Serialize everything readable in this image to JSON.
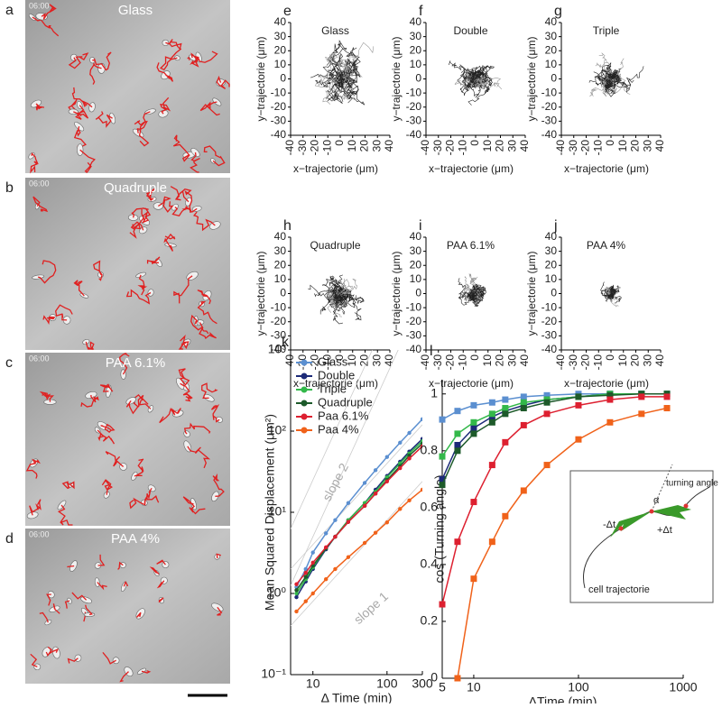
{
  "images": [
    {
      "letter": "a",
      "time": "06:00",
      "label": "Glass"
    },
    {
      "letter": "b",
      "time": "06:00",
      "label": "Quadruple"
    },
    {
      "letter": "c",
      "time": "06:00",
      "label": "PAA 6.1%"
    },
    {
      "letter": "d",
      "time": "06:00",
      "label": "PAA 4%"
    }
  ],
  "chart_data": [
    {
      "type": "trajectory",
      "letter": "e",
      "title": "Glass",
      "xlabel": "x−trajectorie (μm)",
      "ylabel": "y−trajectorie (μm)",
      "xlim": [
        -40,
        40
      ],
      "ylim": [
        -40,
        40
      ],
      "xticks": [
        -40,
        -30,
        -20,
        -10,
        0,
        10,
        20,
        30,
        40
      ],
      "yticks": [
        -40,
        -30,
        -20,
        -10,
        0,
        10,
        20,
        30,
        40
      ]
    },
    {
      "type": "trajectory",
      "letter": "f",
      "title": "Double",
      "xlabel": "x−trajectorie (μm)",
      "ylabel": "y−trajectorie (μm)",
      "xlim": [
        -40,
        40
      ],
      "ylim": [
        -40,
        40
      ],
      "xticks": [
        -40,
        -30,
        -20,
        -10,
        0,
        10,
        20,
        30,
        40
      ],
      "yticks": [
        -40,
        -30,
        -20,
        -10,
        0,
        10,
        20,
        30,
        40
      ]
    },
    {
      "type": "trajectory",
      "letter": "g",
      "title": "Triple",
      "xlabel": "x−trajectorie (μm)",
      "ylabel": "y−trajectorie (μm)",
      "xlim": [
        -40,
        40
      ],
      "ylim": [
        -40,
        40
      ],
      "xticks": [
        -40,
        -30,
        -20,
        -10,
        0,
        10,
        20,
        30,
        40
      ],
      "yticks": [
        -40,
        -30,
        -20,
        -10,
        0,
        10,
        20,
        30,
        40
      ]
    },
    {
      "type": "trajectory",
      "letter": "h",
      "title": "Quadruple",
      "xlabel": "x−trajectorie (μm)",
      "ylabel": "y−trajectorie (μm)",
      "xlim": [
        -40,
        40
      ],
      "ylim": [
        -40,
        40
      ],
      "xticks": [
        -40,
        -30,
        -20,
        -10,
        0,
        10,
        20,
        30,
        40
      ],
      "yticks": [
        -40,
        -30,
        -20,
        -10,
        0,
        10,
        20,
        30,
        40
      ]
    },
    {
      "type": "trajectory",
      "letter": "i",
      "title": "PAA 6.1%",
      "xlabel": "x−trajectorie (μm)",
      "ylabel": "y−trajectorie (μm)",
      "xlim": [
        -40,
        40
      ],
      "ylim": [
        -40,
        40
      ],
      "xticks": [
        -40,
        -30,
        -20,
        -10,
        0,
        10,
        20,
        30,
        40
      ],
      "yticks": [
        -40,
        -30,
        -20,
        -10,
        0,
        10,
        20,
        30,
        40
      ]
    },
    {
      "type": "trajectory",
      "letter": "j",
      "title": "PAA 4%",
      "xlabel": "x−trajectorie (μm)",
      "ylabel": "y−trajectorie (μm)",
      "xlim": [
        -40,
        40
      ],
      "ylim": [
        -40,
        40
      ],
      "xticks": [
        -40,
        -30,
        -20,
        -10,
        0,
        10,
        20,
        30,
        40
      ],
      "yticks": [
        -40,
        -30,
        -20,
        -10,
        0,
        10,
        20,
        30,
        40
      ]
    },
    {
      "type": "line",
      "letter": "k",
      "xlabel": "Δ Time (min)",
      "ylabel": "Mean Squared Displacement (μm²)",
      "log_x": true,
      "log_y": true,
      "marker": "circle",
      "legend": "upper left",
      "xlim": [
        5,
        300
      ],
      "ylim": [
        0.1,
        1000
      ],
      "xticks": [
        10,
        100,
        300
      ],
      "yticks": [
        {
          "value": 0.1,
          "label": "10⁻¹"
        },
        {
          "value": 1,
          "label": "10⁰"
        },
        {
          "value": 10,
          "label": "10¹"
        },
        {
          "value": 100,
          "label": "10²"
        },
        {
          "value": 1000,
          "label": "10³"
        }
      ],
      "annotations": [
        "slope 2",
        "slope 1"
      ],
      "x": [
        6,
        8,
        10,
        15,
        20,
        30,
        50,
        70,
        100,
        150,
        200,
        300
      ],
      "series": [
        {
          "name": "Glass",
          "color": "#5b8fd0",
          "values": [
            1.2,
            2,
            3.2,
            5.5,
            8,
            13,
            23,
            33,
            48,
            72,
            95,
            140
          ]
        },
        {
          "name": "Double",
          "color": "#1c2a78",
          "values": [
            0.9,
            1.4,
            2,
            3.5,
            5,
            8,
            13,
            19,
            28,
            42,
            56,
            80
          ]
        },
        {
          "name": "Triple",
          "color": "#33b84a",
          "values": [
            1.0,
            1.5,
            2.1,
            3.6,
            5,
            8,
            13,
            18,
            27,
            40,
            53,
            75
          ]
        },
        {
          "name": "Quadruple",
          "color": "#1d5a2a",
          "values": [
            1.1,
            1.6,
            2.2,
            3.6,
            5,
            7.6,
            12,
            17,
            25,
            37,
            50,
            70
          ]
        },
        {
          "name": "Paa 6.1%",
          "color": "#dd2030",
          "values": [
            1.3,
            1.8,
            2.4,
            3.7,
            5,
            7.6,
            12,
            17,
            24,
            35,
            46,
            65
          ]
        },
        {
          "name": "Paa 4%",
          "color": "#f0621a",
          "values": [
            0.6,
            0.8,
            1,
            1.5,
            2,
            2.8,
            4.2,
            5.6,
            7.5,
            11,
            14,
            19
          ]
        }
      ]
    },
    {
      "type": "line",
      "letter": "l",
      "xlabel": "ΔTime (min)",
      "ylabel": "cos (Turning angle)",
      "log_x": true,
      "log_y": false,
      "marker": "square",
      "xlim": [
        5,
        1000
      ],
      "ylim": [
        0,
        1.05
      ],
      "xticks": [
        5,
        10,
        100,
        1000
      ],
      "yticks": [
        0,
        0.2,
        0.4,
        0.6,
        0.8,
        1
      ],
      "x": [
        5,
        7,
        10,
        15,
        20,
        30,
        50,
        100,
        200,
        400,
        700
      ],
      "series": [
        {
          "name": "Glass",
          "color": "#5b8fd0",
          "values": [
            0.91,
            0.94,
            0.96,
            0.97,
            0.98,
            0.99,
            0.995,
            1,
            1,
            1,
            1
          ]
        },
        {
          "name": "Double",
          "color": "#1c2a78",
          "values": [
            0.7,
            0.82,
            0.88,
            0.92,
            0.94,
            0.96,
            0.98,
            0.99,
            1,
            1,
            1
          ]
        },
        {
          "name": "Triple",
          "color": "#33b84a",
          "values": [
            0.78,
            0.86,
            0.9,
            0.93,
            0.95,
            0.97,
            0.98,
            0.99,
            1,
            1,
            1
          ]
        },
        {
          "name": "Quadruple",
          "color": "#1d5a2a",
          "values": [
            0.68,
            0.8,
            0.86,
            0.9,
            0.93,
            0.95,
            0.97,
            0.99,
            0.995,
            1,
            1
          ]
        },
        {
          "name": "Paa 6.1%",
          "color": "#dd2030",
          "values": [
            0.26,
            0.48,
            0.62,
            0.75,
            0.83,
            0.89,
            0.93,
            0.96,
            0.98,
            0.99,
            0.99
          ]
        },
        {
          "name": "Paa 4%",
          "color": "#f0621a",
          "values": [
            null,
            0,
            0.35,
            0.48,
            0.57,
            0.66,
            0.75,
            0.84,
            0.9,
            0.93,
            0.95
          ]
        }
      ],
      "inset": {
        "angle_label": "turning angle",
        "alpha": "α",
        "minus": "-Δt",
        "plus": "+Δt",
        "caption": "cell trajectorie"
      }
    }
  ]
}
